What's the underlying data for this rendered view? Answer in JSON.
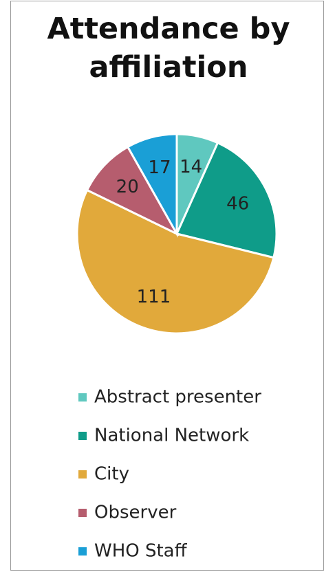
{
  "chart_data": {
    "type": "pie",
    "title": "Attendance by affiliation",
    "categories": [
      "Abstract presenter",
      "National Network",
      "City",
      "Observer",
      "WHO Staff"
    ],
    "values": [
      14,
      46,
      111,
      20,
      17
    ],
    "colors": [
      "#5fc8bf",
      "#0f9c89",
      "#e1a93b",
      "#b65d6e",
      "#1a9fd6"
    ],
    "legend": "bottom"
  }
}
